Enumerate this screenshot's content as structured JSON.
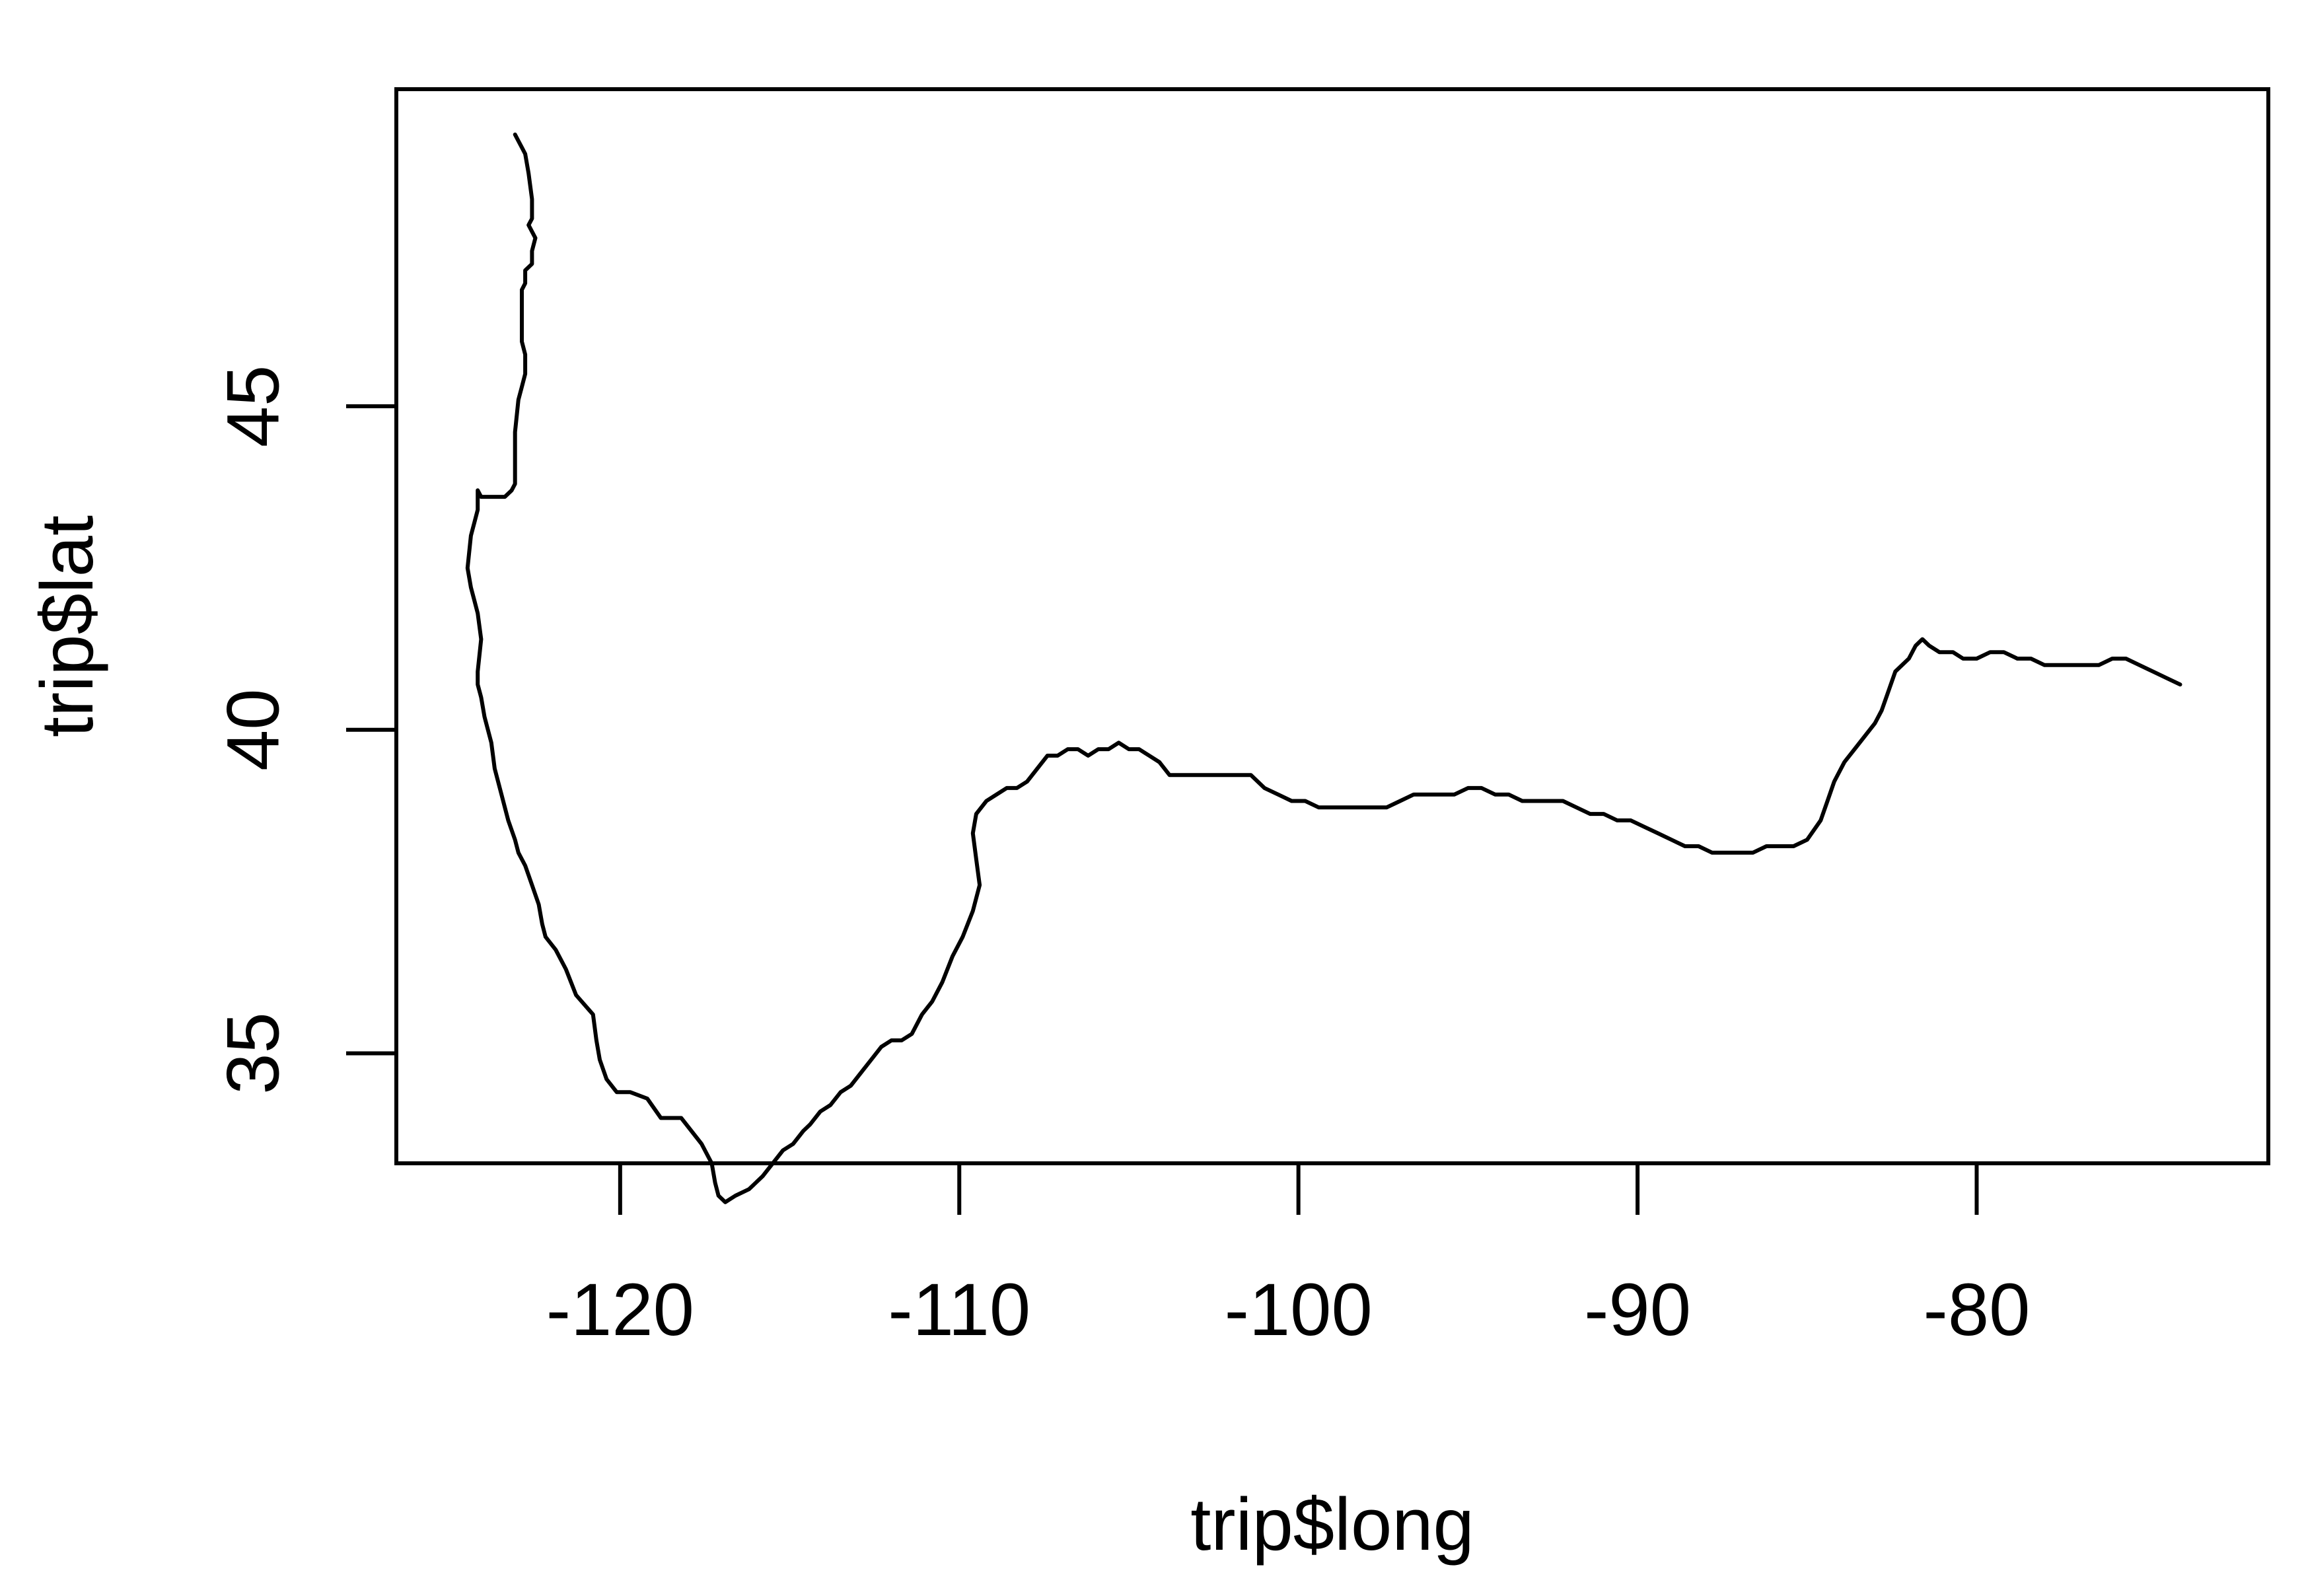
{
  "chart_data": {
    "type": "line",
    "title": "",
    "xlabel": "trip$long",
    "ylabel": "trip$lat",
    "xlim": [
      -126.6,
      -71.4
    ],
    "ylim": [
      33.3,
      49.9
    ],
    "x_ticks": [
      -120,
      -110,
      -100,
      -90,
      -80
    ],
    "y_ticks": [
      35,
      40,
      45
    ],
    "x_tick_labels": [
      "-120",
      "-110",
      "-100",
      "-90",
      "-80"
    ],
    "y_tick_labels": [
      "35",
      "40",
      "45"
    ],
    "grid": false,
    "legend": "none",
    "line_color": "#000000",
    "series": [
      {
        "values": [
          [
            -123.1,
            49.2
          ],
          [
            -123.0,
            49.1
          ],
          [
            -122.9,
            49.0
          ],
          [
            -122.8,
            48.9
          ],
          [
            -122.7,
            48.6
          ],
          [
            -122.6,
            48.2
          ],
          [
            -122.6,
            47.9
          ],
          [
            -122.7,
            47.8
          ],
          [
            -122.5,
            47.6
          ],
          [
            -122.6,
            47.4
          ],
          [
            -122.6,
            47.2
          ],
          [
            -122.8,
            47.1
          ],
          [
            -122.8,
            46.9
          ],
          [
            -122.9,
            46.8
          ],
          [
            -122.9,
            46.5
          ],
          [
            -122.9,
            46.3
          ],
          [
            -122.9,
            46.0
          ],
          [
            -122.8,
            45.8
          ],
          [
            -122.8,
            45.5
          ],
          [
            -122.9,
            45.3
          ],
          [
            -123.0,
            45.1
          ],
          [
            -123.1,
            44.6
          ],
          [
            -123.1,
            43.8
          ],
          [
            -123.2,
            43.7
          ],
          [
            -123.4,
            43.6
          ],
          [
            -123.7,
            43.6
          ],
          [
            -124.0,
            43.6
          ],
          [
            -124.1,
            43.6
          ],
          [
            -124.2,
            43.7
          ],
          [
            -124.2,
            43.4
          ],
          [
            -124.3,
            43.2
          ],
          [
            -124.4,
            43.0
          ],
          [
            -124.5,
            42.5
          ],
          [
            -124.4,
            42.2
          ],
          [
            -124.3,
            42.0
          ],
          [
            -124.2,
            41.8
          ],
          [
            -124.1,
            41.4
          ],
          [
            -124.2,
            40.9
          ],
          [
            -124.2,
            40.7
          ],
          [
            -124.1,
            40.5
          ],
          [
            -124.0,
            40.2
          ],
          [
            -123.8,
            39.8
          ],
          [
            -123.7,
            39.4
          ],
          [
            -123.5,
            39.0
          ],
          [
            -123.3,
            38.6
          ],
          [
            -123.1,
            38.3
          ],
          [
            -123.0,
            38.1
          ],
          [
            -122.8,
            37.9
          ],
          [
            -122.6,
            37.6
          ],
          [
            -122.4,
            37.3
          ],
          [
            -122.3,
            37.0
          ],
          [
            -122.2,
            36.8
          ],
          [
            -121.9,
            36.6
          ],
          [
            -121.6,
            36.3
          ],
          [
            -121.3,
            35.9
          ],
          [
            -120.8,
            35.6
          ],
          [
            -120.7,
            35.2
          ],
          [
            -120.6,
            34.9
          ],
          [
            -120.4,
            34.6
          ],
          [
            -120.1,
            34.4
          ],
          [
            -119.7,
            34.4
          ],
          [
            -119.2,
            34.3
          ],
          [
            -118.8,
            34.0
          ],
          [
            -118.5,
            34.0
          ],
          [
            -118.2,
            34.0
          ],
          [
            -117.9,
            33.8
          ],
          [
            -117.6,
            33.6
          ],
          [
            -117.3,
            33.3
          ],
          [
            -117.2,
            33.0
          ],
          [
            -117.1,
            32.8
          ],
          [
            -116.9,
            32.7
          ],
          [
            -116.6,
            32.8
          ],
          [
            -116.2,
            32.9
          ],
          [
            -115.8,
            33.1
          ],
          [
            -115.5,
            33.3
          ],
          [
            -115.2,
            33.5
          ],
          [
            -114.9,
            33.6
          ],
          [
            -114.6,
            33.8
          ],
          [
            -114.4,
            33.9
          ],
          [
            -114.1,
            34.1
          ],
          [
            -113.8,
            34.2
          ],
          [
            -113.5,
            34.4
          ],
          [
            -113.2,
            34.5
          ],
          [
            -112.9,
            34.7
          ],
          [
            -112.6,
            34.9
          ],
          [
            -112.3,
            35.1
          ],
          [
            -112.0,
            35.2
          ],
          [
            -111.7,
            35.2
          ],
          [
            -111.4,
            35.3
          ],
          [
            -111.1,
            35.6
          ],
          [
            -110.8,
            35.8
          ],
          [
            -110.5,
            36.1
          ],
          [
            -110.2,
            36.5
          ],
          [
            -109.9,
            36.8
          ],
          [
            -109.6,
            37.2
          ],
          [
            -109.4,
            37.6
          ],
          [
            -109.5,
            38.0
          ],
          [
            -109.6,
            38.4
          ],
          [
            -109.5,
            38.7
          ],
          [
            -109.2,
            38.9
          ],
          [
            -108.9,
            39.0
          ],
          [
            -108.6,
            39.1
          ],
          [
            -108.3,
            39.1
          ],
          [
            -108.0,
            39.2
          ],
          [
            -107.7,
            39.4
          ],
          [
            -107.4,
            39.6
          ],
          [
            -107.1,
            39.6
          ],
          [
            -106.8,
            39.7
          ],
          [
            -106.5,
            39.7
          ],
          [
            -106.2,
            39.6
          ],
          [
            -105.9,
            39.7
          ],
          [
            -105.6,
            39.7
          ],
          [
            -105.3,
            39.8
          ],
          [
            -105.0,
            39.7
          ],
          [
            -104.7,
            39.7
          ],
          [
            -104.4,
            39.6
          ],
          [
            -104.1,
            39.5
          ],
          [
            -103.8,
            39.3
          ],
          [
            -103.4,
            39.3
          ],
          [
            -103.0,
            39.3
          ],
          [
            -102.6,
            39.3
          ],
          [
            -102.2,
            39.3
          ],
          [
            -101.8,
            39.3
          ],
          [
            -101.4,
            39.3
          ],
          [
            -101.0,
            39.1
          ],
          [
            -100.6,
            39.0
          ],
          [
            -100.2,
            38.9
          ],
          [
            -99.8,
            38.9
          ],
          [
            -99.4,
            38.8
          ],
          [
            -99.0,
            38.8
          ],
          [
            -98.6,
            38.8
          ],
          [
            -98.2,
            38.8
          ],
          [
            -97.8,
            38.8
          ],
          [
            -97.4,
            38.8
          ],
          [
            -97.0,
            38.9
          ],
          [
            -96.6,
            39.0
          ],
          [
            -96.2,
            39.0
          ],
          [
            -95.8,
            39.0
          ],
          [
            -95.4,
            39.0
          ],
          [
            -95.0,
            39.1
          ],
          [
            -94.6,
            39.1
          ],
          [
            -94.2,
            39.0
          ],
          [
            -93.8,
            39.0
          ],
          [
            -93.4,
            38.9
          ],
          [
            -93.0,
            38.9
          ],
          [
            -92.6,
            38.9
          ],
          [
            -92.2,
            38.9
          ],
          [
            -91.8,
            38.8
          ],
          [
            -91.4,
            38.7
          ],
          [
            -91.0,
            38.7
          ],
          [
            -90.6,
            38.6
          ],
          [
            -90.2,
            38.6
          ],
          [
            -89.8,
            38.5
          ],
          [
            -89.4,
            38.4
          ],
          [
            -89.0,
            38.3
          ],
          [
            -88.6,
            38.2
          ],
          [
            -88.2,
            38.2
          ],
          [
            -87.8,
            38.1
          ],
          [
            -87.4,
            38.1
          ],
          [
            -87.0,
            38.1
          ],
          [
            -86.6,
            38.1
          ],
          [
            -86.2,
            38.2
          ],
          [
            -85.8,
            38.2
          ],
          [
            -85.4,
            38.2
          ],
          [
            -85.0,
            38.3
          ],
          [
            -84.6,
            38.6
          ],
          [
            -84.4,
            38.9
          ],
          [
            -84.2,
            39.2
          ],
          [
            -83.9,
            39.5
          ],
          [
            -83.6,
            39.7
          ],
          [
            -83.3,
            39.9
          ],
          [
            -83.0,
            40.1
          ],
          [
            -82.8,
            40.3
          ],
          [
            -82.6,
            40.6
          ],
          [
            -82.4,
            40.9
          ],
          [
            -82.2,
            41.0
          ],
          [
            -82.0,
            41.1
          ],
          [
            -81.8,
            41.3
          ],
          [
            -81.6,
            41.4
          ],
          [
            -81.4,
            41.3
          ],
          [
            -81.1,
            41.2
          ],
          [
            -80.7,
            41.2
          ],
          [
            -80.4,
            41.1
          ],
          [
            -80.0,
            41.1
          ],
          [
            -79.6,
            41.2
          ],
          [
            -79.2,
            41.2
          ],
          [
            -78.8,
            41.1
          ],
          [
            -78.4,
            41.1
          ],
          [
            -78.0,
            41.0
          ],
          [
            -77.6,
            41.0
          ],
          [
            -77.2,
            41.0
          ],
          [
            -76.8,
            41.0
          ],
          [
            -76.4,
            41.0
          ],
          [
            -76.0,
            41.1
          ],
          [
            -75.6,
            41.1
          ],
          [
            -75.2,
            41.0
          ],
          [
            -74.8,
            40.9
          ],
          [
            -74.4,
            40.8
          ],
          [
            -74.0,
            40.7
          ]
        ]
      }
    ]
  }
}
